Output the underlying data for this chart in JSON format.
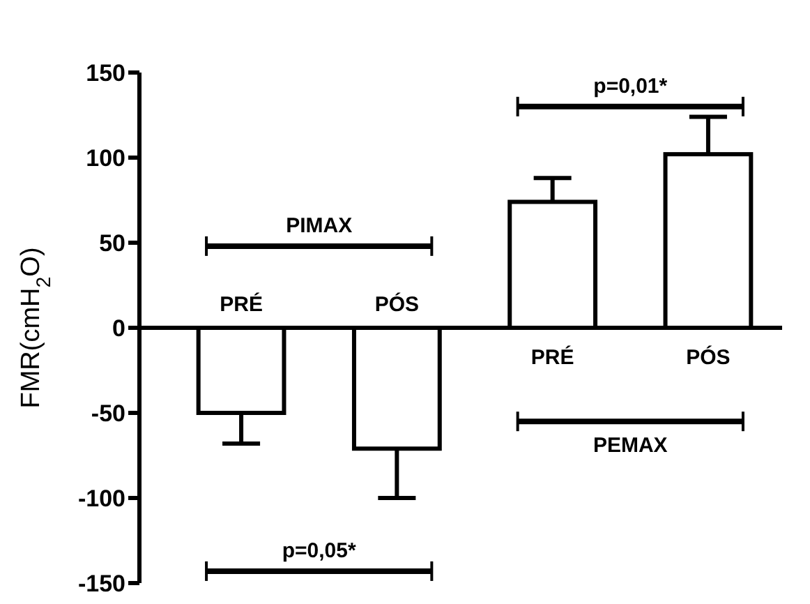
{
  "chart_data": {
    "type": "bar",
    "ylabel": "FMR(cmH$_{2}$O)",
    "categories": [
      "PRÉ",
      "PÓS",
      "PRÉ",
      "PÓS"
    ],
    "values": [
      -50,
      -71,
      74,
      102
    ],
    "errors": [
      [
        -68,
        -50
      ],
      [
        -100,
        -71
      ],
      [
        74,
        88
      ],
      [
        102,
        124
      ]
    ],
    "color": "#ffffff",
    "ylim": [
      -150,
      150
    ],
    "yticks": [
      -150,
      -100,
      -50,
      0,
      50,
      100,
      150
    ],
    "annotations": [
      "PIMAX",
      "p=0,05*",
      "p=0,01*",
      "PEMAX"
    ]
  }
}
